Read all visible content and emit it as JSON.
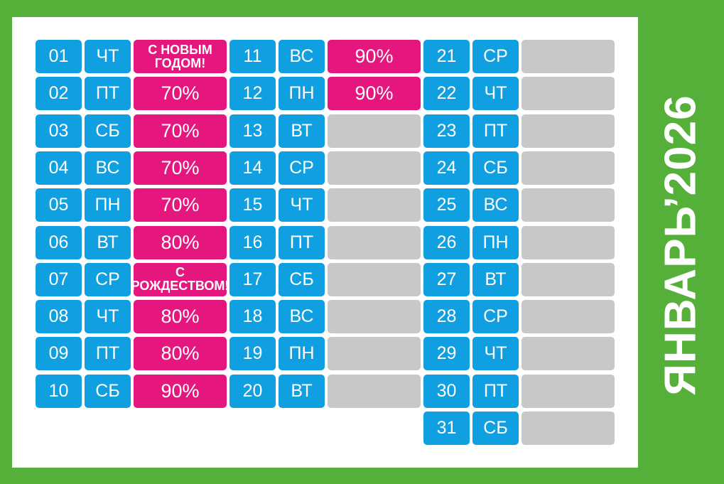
{
  "title": "ЯНВАРЬ’2026",
  "colors": {
    "frame": "#55b03a",
    "day_cell": "#109fe0",
    "highlight_cell": "#e5177e",
    "empty_cell": "#c8c8c8"
  },
  "days": [
    {
      "num": "01",
      "dow": "ЧТ",
      "value": "С НОВЫМ ГОДОМ!"
    },
    {
      "num": "02",
      "dow": "ПТ",
      "value": "70%"
    },
    {
      "num": "03",
      "dow": "СБ",
      "value": "70%"
    },
    {
      "num": "04",
      "dow": "ВС",
      "value": "70%"
    },
    {
      "num": "05",
      "dow": "ПН",
      "value": "70%"
    },
    {
      "num": "06",
      "dow": "ВТ",
      "value": "80%"
    },
    {
      "num": "07",
      "dow": "СР",
      "value": "С РОЖДЕСТВОМ!"
    },
    {
      "num": "08",
      "dow": "ЧТ",
      "value": "80%"
    },
    {
      "num": "09",
      "dow": "ПТ",
      "value": "80%"
    },
    {
      "num": "10",
      "dow": "СБ",
      "value": "90%"
    },
    {
      "num": "11",
      "dow": "ВС",
      "value": "90%"
    },
    {
      "num": "12",
      "dow": "ПН",
      "value": "90%"
    },
    {
      "num": "13",
      "dow": "ВТ",
      "value": ""
    },
    {
      "num": "14",
      "dow": "СР",
      "value": ""
    },
    {
      "num": "15",
      "dow": "ЧТ",
      "value": ""
    },
    {
      "num": "16",
      "dow": "ПТ",
      "value": ""
    },
    {
      "num": "17",
      "dow": "СБ",
      "value": ""
    },
    {
      "num": "18",
      "dow": "ВС",
      "value": ""
    },
    {
      "num": "19",
      "dow": "ПН",
      "value": ""
    },
    {
      "num": "20",
      "dow": "ВТ",
      "value": ""
    },
    {
      "num": "21",
      "dow": "СР",
      "value": ""
    },
    {
      "num": "22",
      "dow": "ЧТ",
      "value": ""
    },
    {
      "num": "23",
      "dow": "ПТ",
      "value": ""
    },
    {
      "num": "24",
      "dow": "СБ",
      "value": ""
    },
    {
      "num": "25",
      "dow": "ВС",
      "value": ""
    },
    {
      "num": "26",
      "dow": "ПН",
      "value": ""
    },
    {
      "num": "27",
      "dow": "ВТ",
      "value": ""
    },
    {
      "num": "28",
      "dow": "СР",
      "value": ""
    },
    {
      "num": "29",
      "dow": "ЧТ",
      "value": ""
    },
    {
      "num": "30",
      "dow": "ПТ",
      "value": ""
    },
    {
      "num": "31",
      "dow": "СБ",
      "value": ""
    }
  ]
}
